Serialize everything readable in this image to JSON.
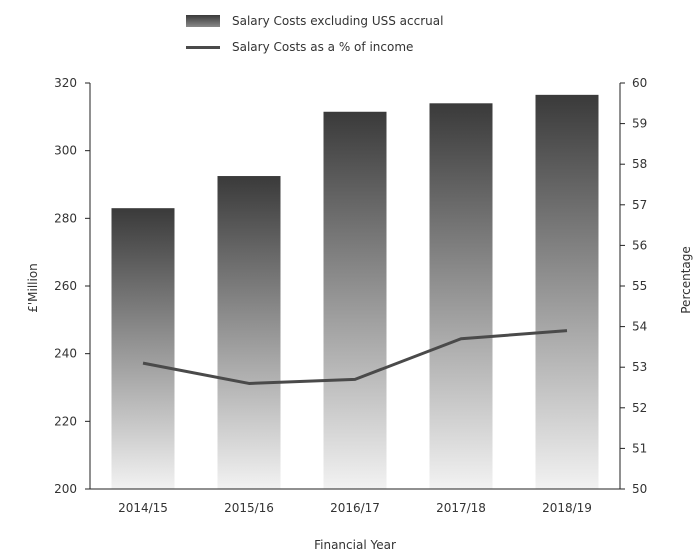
{
  "chart_data": {
    "type": "bar",
    "categories": [
      "2014/15",
      "2015/16",
      "2016/17",
      "2017/18",
      "2018/19"
    ],
    "series": [
      {
        "name": "Salary Costs excluding USS accrual",
        "type": "bar",
        "axis": "left",
        "values": [
          283,
          292.5,
          311.5,
          314,
          316.5
        ]
      },
      {
        "name": "Salary Costs as a % of income",
        "type": "line",
        "axis": "right",
        "values": [
          53.1,
          52.6,
          52.7,
          53.7,
          53.9
        ]
      }
    ],
    "xlabel": "Financial Year",
    "ylabel": "£'Million",
    "y2label": "Percentage",
    "ylim": [
      200,
      320
    ],
    "y2lim": [
      50,
      60
    ],
    "yticks": [
      "200",
      "220",
      "240",
      "260",
      "280",
      "300",
      "320"
    ],
    "y2ticks": [
      "50",
      "51",
      "52",
      "53",
      "54",
      "55",
      "56",
      "57",
      "58",
      "59",
      "60"
    ],
    "legend_position": "top",
    "grid": false,
    "colors": {
      "bar_top": "#3a3a3a",
      "bar_bottom": "#f2f2f2",
      "line": "#4a4a4a",
      "axis": "#222222"
    }
  }
}
